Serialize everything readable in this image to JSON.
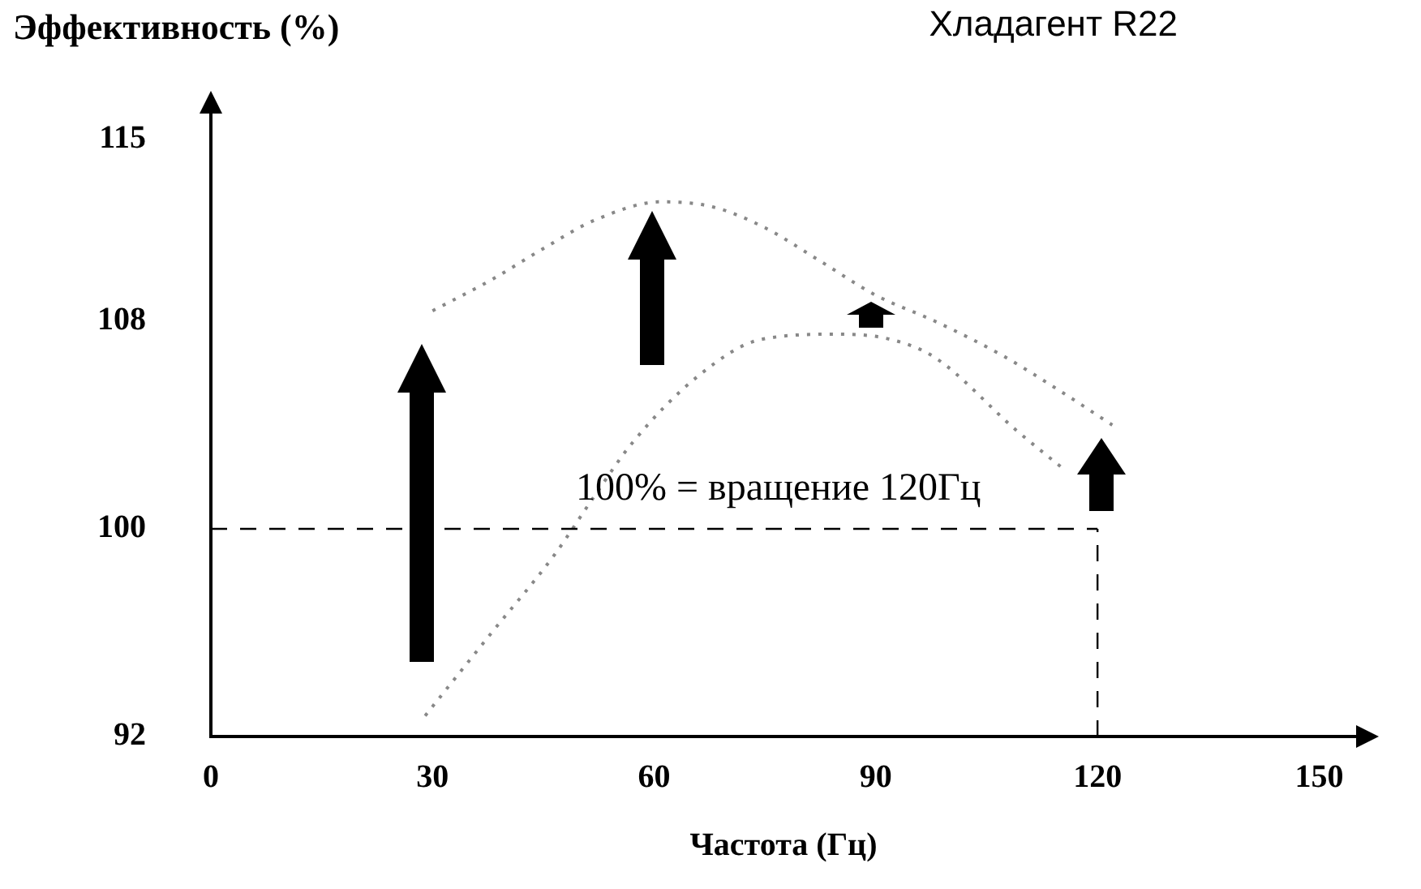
{
  "chart_data": {
    "type": "line",
    "title": "Хладагент R22",
    "xlabel": "Частота (Гц)",
    "ylabel": "Эффективность (%)",
    "series": [
      {
        "color": "#888888",
        "x": [
          30,
          38,
          45,
          52,
          61,
          68,
          75,
          82,
          90,
          98,
          107,
          115,
          122
        ],
        "values": [
          108.4,
          109.6,
          110.8,
          111.9,
          112.6,
          112.4,
          111.6,
          110.4,
          109,
          108,
          106.7,
          105.3,
          104
        ]
      },
      {
        "color": "#888888",
        "x": [
          29,
          38,
          46.5,
          52,
          57,
          66,
          74.5,
          85,
          92,
          98,
          109,
          115
        ],
        "values": [
          92.8,
          96,
          99,
          101.3,
          103.3,
          105.9,
          107.3,
          107.5,
          107.3,
          106.6,
          103.8,
          102.4
        ]
      }
    ],
    "xlim": [
      0,
      155
    ],
    "xticks": [
      0,
      30,
      60,
      90,
      120,
      150
    ],
    "ylim": [
      92,
      116
    ],
    "yticks": [
      92,
      100,
      108,
      115
    ],
    "ref_lines": [
      {
        "axis": "y",
        "value": 100,
        "color": "#000000",
        "line_style": "dashed"
      },
      {
        "axis": "x",
        "value": 120,
        "color": "#000000",
        "line_style": "dashed"
      }
    ],
    "annotations": [
      "100% = вращение 120Гц"
    ],
    "line_style": "dotted",
    "marker": "none",
    "grid": false,
    "legend": false
  }
}
